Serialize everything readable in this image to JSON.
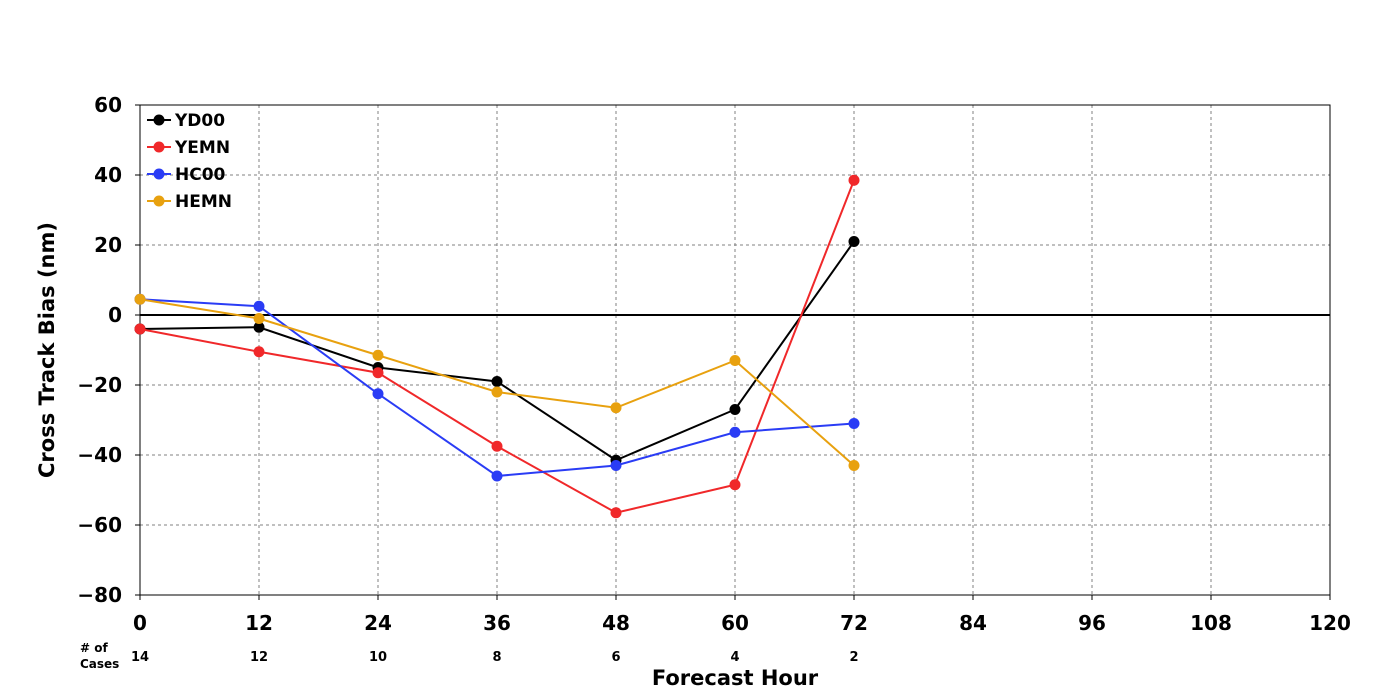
{
  "chart_data": {
    "type": "line",
    "title": "",
    "xlabel": "Forecast Hour",
    "ylabel": "Cross Track Bias (nm)",
    "xlim": [
      0,
      120
    ],
    "ylim": [
      -80,
      60
    ],
    "xticks": [
      0,
      12,
      24,
      36,
      48,
      60,
      72,
      84,
      96,
      108,
      120
    ],
    "yticks": [
      -80,
      -60,
      -40,
      -20,
      0,
      20,
      40,
      60
    ],
    "ytick_labels": [
      "−80",
      "−60",
      "−40",
      "−20",
      "0",
      "20",
      "40",
      "60"
    ],
    "grid": true,
    "zero_line": true,
    "legend_position": "top-left",
    "x": [
      0,
      12,
      24,
      36,
      48,
      60,
      72
    ],
    "series": [
      {
        "name": "YD00",
        "color": "#000000",
        "values": [
          -4,
          -3.5,
          -15,
          -19,
          -41.5,
          -27,
          21
        ]
      },
      {
        "name": "YEMN",
        "color": "#f0282a",
        "values": [
          -4,
          -10.5,
          -16.5,
          -37.5,
          -56.5,
          -48.5,
          38.5
        ]
      },
      {
        "name": "HC00",
        "color": "#2a3cf5",
        "values": [
          4.5,
          2.5,
          -22.5,
          -46,
          -43,
          -33.5,
          -31
        ]
      },
      {
        "name": "HEMN",
        "color": "#e8a10f",
        "values": [
          4.5,
          -1,
          -11.5,
          -22,
          -26.5,
          -13,
          -43
        ]
      }
    ],
    "cases": {
      "title_line1": "# of",
      "title_line2": "Cases",
      "x": [
        0,
        12,
        24,
        36,
        48,
        60,
        72
      ],
      "values": [
        "14",
        "12",
        "10",
        "8",
        "6",
        "4",
        "2"
      ]
    }
  }
}
